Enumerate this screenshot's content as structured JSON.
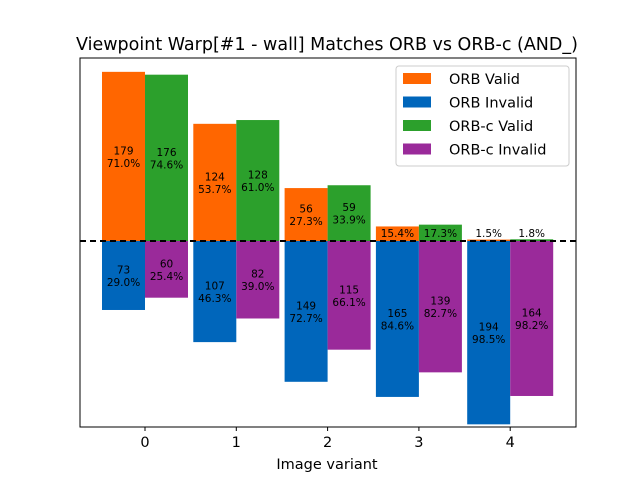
{
  "chart_data": {
    "type": "bar",
    "title": "Viewpoint Warp[#1 - wall] Matches ORB vs ORB-c (AND_)",
    "xlabel": "Image variant",
    "ylabel": "",
    "categories": [
      "0",
      "1",
      "2",
      "3",
      "4"
    ],
    "series": [
      {
        "name": "ORB Valid",
        "color": "#ff6600",
        "values": [
          179,
          124,
          56,
          15.4,
          1.5
        ],
        "labels": [
          "179\n71.0%",
          "124\n53.7%",
          "56\n27.3%",
          "15.4%",
          "1.5%"
        ]
      },
      {
        "name": "ORB Invalid",
        "color": "#0066bb",
        "values": [
          73,
          107,
          149,
          165,
          194
        ],
        "labels": [
          "73\n29.0%",
          "107\n46.3%",
          "149\n72.7%",
          "165\n84.6%",
          "194\n98.5%"
        ]
      },
      {
        "name": "ORB-c Valid",
        "color": "#2ca02c",
        "values": [
          176,
          128,
          59,
          17.3,
          1.8
        ],
        "labels": [
          "176\n74.6%",
          "128\n61.0%",
          "59\n33.9%",
          "17.3%",
          "1.8%"
        ]
      },
      {
        "name": "ORB-c Invalid",
        "color": "#9a2a9a",
        "values": [
          60,
          82,
          115,
          139,
          164
        ],
        "labels": [
          "60\n25.4%",
          "82\n39.0%",
          "115\n66.1%",
          "139\n82.7%",
          "164\n98.2%"
        ]
      }
    ],
    "reference_line": {
      "value": 0,
      "style": "dashed"
    },
    "legend": "top-right",
    "grid": false
  }
}
